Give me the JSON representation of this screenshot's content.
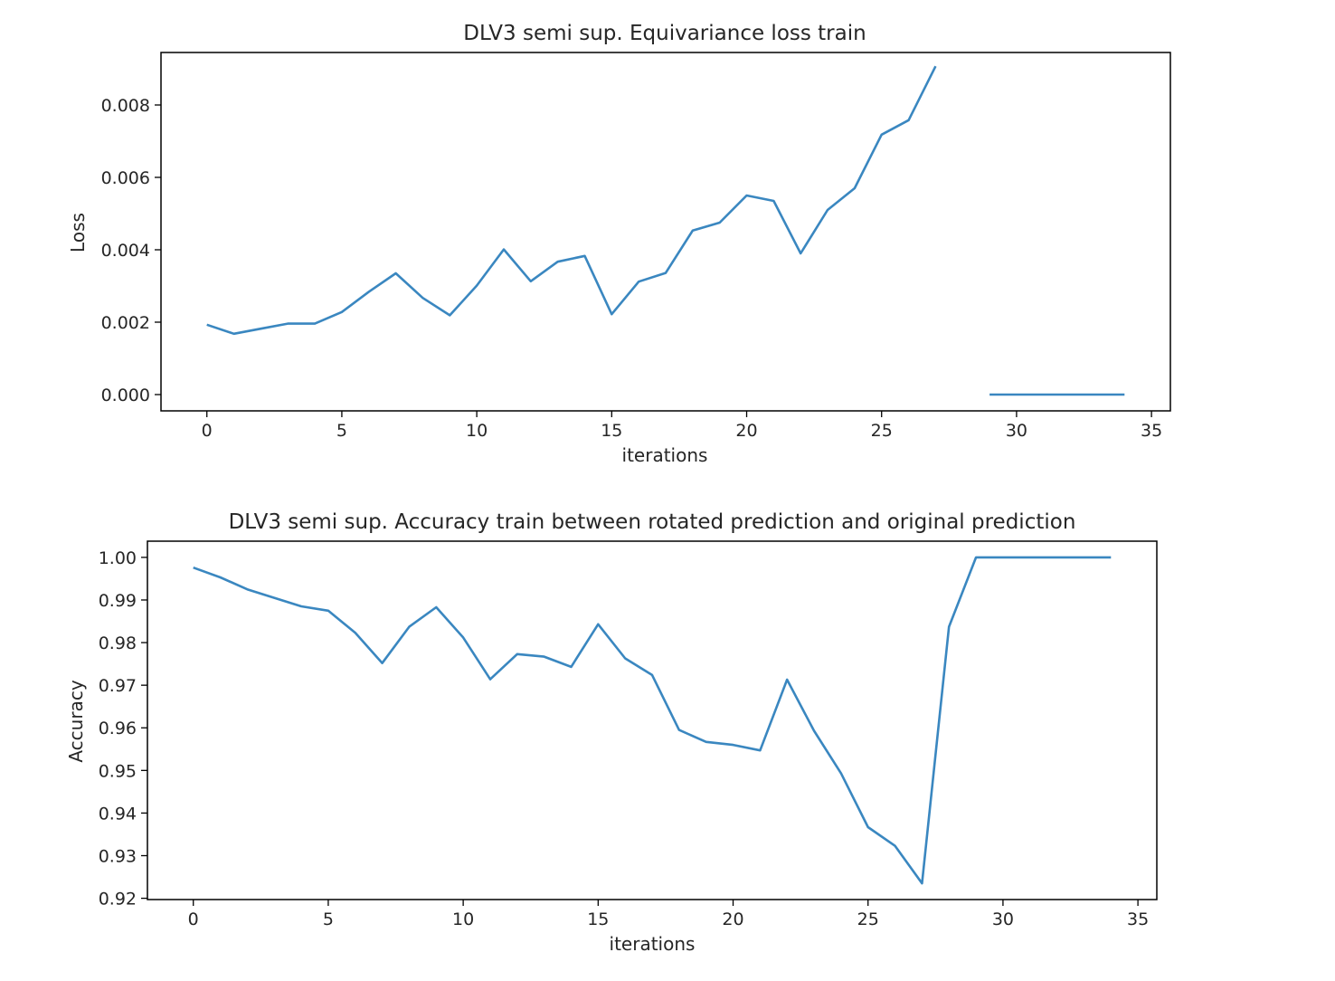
{
  "chart_data": [
    {
      "type": "line",
      "title": "DLV3 semi sup. Equivariance loss train",
      "xlabel": "iterations",
      "ylabel": "Loss",
      "xlim": [
        -1.7,
        35.7
      ],
      "ylim": [
        -0.00045,
        0.00945
      ],
      "xticks": [
        0,
        5,
        10,
        15,
        20,
        25,
        30,
        35
      ],
      "yticks": [
        0.0,
        0.002,
        0.004,
        0.006,
        0.008
      ],
      "ytick_labels": [
        "0.000",
        "0.002",
        "0.004",
        "0.006",
        "0.008"
      ],
      "grid": false,
      "color": "#3a87c0",
      "segments": [
        {
          "x": [
            0,
            1,
            2,
            3,
            4,
            5,
            6,
            7,
            8,
            9,
            10,
            11,
            12,
            13,
            14,
            15,
            16,
            17,
            18,
            19,
            20,
            21,
            22,
            23,
            24,
            25,
            26,
            27
          ],
          "y": [
            0.00193,
            0.00168,
            0.00182,
            0.00196,
            0.00196,
            0.00228,
            0.00284,
            0.00335,
            0.00267,
            0.00219,
            0.00301,
            0.00401,
            0.00313,
            0.00367,
            0.00383,
            0.00222,
            0.00312,
            0.00336,
            0.00453,
            0.00475,
            0.0055,
            0.00535,
            0.0039,
            0.0051,
            0.0057,
            0.00718,
            0.00758,
            0.00907
          ]
        },
        {
          "x": [
            29,
            30,
            31,
            32,
            33,
            34
          ],
          "y": [
            0.0,
            0.0,
            0.0,
            0.0,
            0.0,
            0.0
          ]
        }
      ]
    },
    {
      "type": "line",
      "title": "DLV3 semi sup. Accuracy train between rotated prediction and original prediction",
      "xlabel": "iterations",
      "ylabel": "Accuracy",
      "xlim": [
        -1.7,
        35.7
      ],
      "ylim": [
        0.9197,
        1.0038
      ],
      "xticks": [
        0,
        5,
        10,
        15,
        20,
        25,
        30,
        35
      ],
      "yticks": [
        0.92,
        0.93,
        0.94,
        0.95,
        0.96,
        0.97,
        0.98,
        0.99,
        1.0
      ],
      "ytick_labels": [
        "0.92",
        "0.93",
        "0.94",
        "0.95",
        "0.96",
        "0.97",
        "0.98",
        "0.99",
        "1.00"
      ],
      "grid": false,
      "color": "#3a87c0",
      "segments": [
        {
          "x": [
            0,
            1,
            2,
            3,
            4,
            5,
            6,
            7,
            8,
            9,
            10,
            11,
            12,
            13,
            14,
            15,
            16,
            17,
            18,
            19,
            20,
            21,
            22,
            23,
            24,
            25,
            26,
            27,
            28,
            29,
            30,
            31,
            32,
            33,
            34
          ],
          "y": [
            0.9976,
            0.9953,
            0.9925,
            0.9905,
            0.9885,
            0.9875,
            0.9823,
            0.9752,
            0.9837,
            0.9883,
            0.9812,
            0.9714,
            0.9773,
            0.9767,
            0.9743,
            0.9843,
            0.9763,
            0.9724,
            0.9595,
            0.9567,
            0.956,
            0.9547,
            0.9713,
            0.9593,
            0.9493,
            0.9367,
            0.9323,
            0.9235,
            0.9837,
            1.0,
            1.0,
            1.0,
            1.0,
            1.0,
            1.0
          ]
        }
      ]
    }
  ]
}
